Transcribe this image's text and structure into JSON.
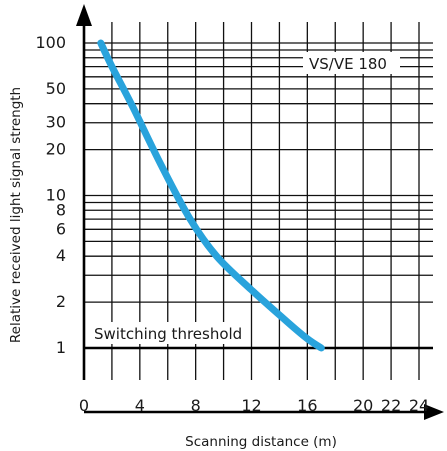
{
  "chart_data": {
    "type": "line",
    "title": "",
    "annotation": "VS/VE 180",
    "xlabel": "Scanning distance (m)",
    "ylabel": "Relative received light signal strength",
    "x_scale": "linear",
    "y_scale": "log",
    "xlim": [
      0,
      24
    ],
    "ylim": [
      1,
      100
    ],
    "x_ticks": [
      0,
      4,
      8,
      12,
      16,
      20,
      22,
      24
    ],
    "x_tick_labels": [
      "0",
      "4",
      "8",
      "12",
      "16",
      "20",
      "22",
      "24"
    ],
    "x_grid": [
      2,
      4,
      6,
      8,
      10,
      12,
      14,
      16,
      18,
      20,
      22,
      24
    ],
    "y_ticks": [
      1,
      2,
      4,
      6,
      8,
      10,
      20,
      30,
      50,
      100
    ],
    "y_tick_labels": [
      "1",
      "2",
      "4",
      "6",
      "8",
      "10",
      "20",
      "30",
      "50",
      "100"
    ],
    "y_grid": [
      1,
      2,
      3,
      4,
      5,
      6,
      7,
      8,
      9,
      10,
      20,
      30,
      40,
      50,
      60,
      70,
      80,
      90,
      100
    ],
    "grid": true,
    "threshold": {
      "label": "Switching threshold",
      "value": 1
    },
    "series": [
      {
        "color": "#29a3dc",
        "x": [
          1.2,
          2.0,
          3.5,
          5.5,
          7.6,
          9.5,
          12.0,
          14.5,
          16.0,
          17.0
        ],
        "y": [
          100,
          70,
          38,
          16,
          7.0,
          4.0,
          2.4,
          1.5,
          1.15,
          1.0
        ]
      }
    ]
  }
}
